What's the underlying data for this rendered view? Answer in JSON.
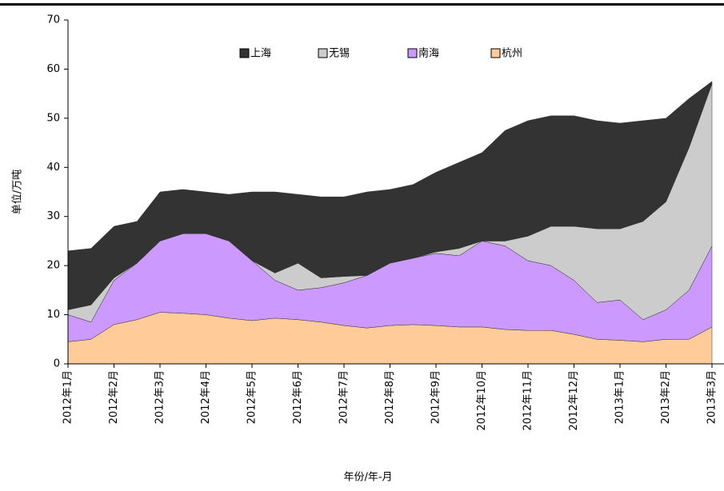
{
  "chart_data": {
    "type": "stacked-area",
    "y_label": "单位/万吨",
    "x_label": "年份/年-月",
    "categories": [
      "2012年1月",
      null,
      "2012年2月",
      null,
      "2012年3月",
      null,
      "2012年4月",
      null,
      "2012年5月",
      null,
      "2012年6月",
      null,
      "2012年7月",
      null,
      "2012年8月",
      null,
      "2012年9月",
      null,
      "2012年10月",
      null,
      "2012年11月",
      null,
      "2012年12月",
      null,
      "2013年1月",
      null,
      "2013年2月",
      null,
      "2013年3月"
    ],
    "series": [
      {
        "name": "上海",
        "color": "#333333",
        "values": [
          12,
          11.5,
          10.5,
          8.5,
          10,
          9,
          8.5,
          9.5,
          14,
          16.5,
          14,
          16.5,
          16.2,
          17,
          15,
          15,
          16.2,
          17.5,
          18,
          22.5,
          23.5,
          22.5,
          22.5,
          22,
          21.5,
          20.5,
          17,
          10,
          0.5
        ]
      },
      {
        "name": "无锡",
        "color": "#cccccc",
        "values": [
          1,
          3.5,
          0.5,
          0,
          0,
          0,
          0,
          0,
          0,
          1.5,
          5.5,
          2,
          1.3,
          0,
          0,
          0,
          0.3,
          1.5,
          0,
          1,
          5,
          8,
          11,
          15,
          14.5,
          20,
          22,
          29,
          33
        ]
      },
      {
        "name": "南海",
        "color": "#cc99ff",
        "values": [
          5.5,
          3.5,
          9,
          11.5,
          14.5,
          16.2,
          16.5,
          15.7,
          12.2,
          7.7,
          6,
          7,
          8.7,
          10.7,
          12.7,
          13.5,
          14.7,
          14.5,
          17.5,
          17,
          14.2,
          13.2,
          11,
          7.5,
          8.2,
          4.5,
          6,
          10,
          16.5
        ]
      },
      {
        "name": "杭州",
        "color": "#ffcc99",
        "values": [
          4.5,
          5,
          8,
          9,
          10.5,
          10.3,
          10,
          9.3,
          8.8,
          9.3,
          9,
          8.5,
          7.8,
          7.3,
          7.8,
          8,
          7.8,
          7.5,
          7.5,
          7,
          6.8,
          6.8,
          6,
          5,
          4.8,
          4.5,
          5,
          5,
          7.5
        ]
      }
    ],
    "ylim": [
      0,
      70
    ],
    "yticks": [
      0,
      10,
      20,
      30,
      40,
      50,
      60,
      70
    ]
  }
}
